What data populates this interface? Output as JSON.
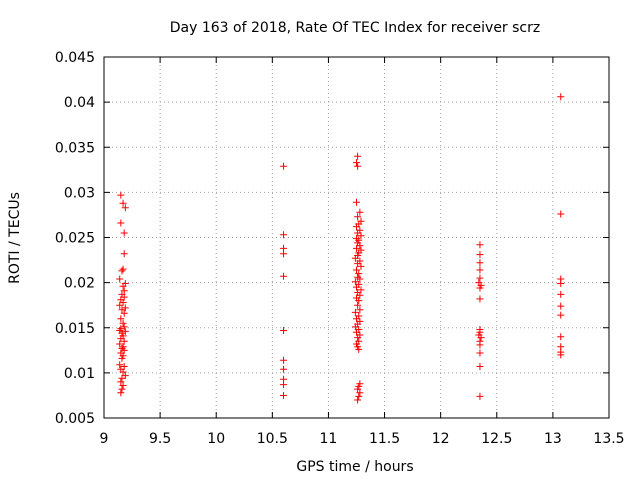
{
  "chart_data": {
    "type": "scatter",
    "title": "Day 163 of 2018, Rate Of TEC Index for receiver scrz",
    "xlabel": "GPS time / hours",
    "ylabel": "ROTI / TECUs",
    "xlim": [
      9,
      13.5
    ],
    "ylim": [
      0.005,
      0.045
    ],
    "grid": true,
    "marker": "+",
    "colors": {
      "points": "#ff0000",
      "grid": "#a0a0a0",
      "axes": "#000000"
    },
    "x_ticks": [
      "9",
      "9.5",
      "10",
      "10.5",
      "11",
      "11.5",
      "12",
      "12.5",
      "13",
      "13.5"
    ],
    "y_ticks": [
      "0.005",
      "0.01",
      "0.015",
      "0.02",
      "0.025",
      "0.03",
      "0.035",
      "0.04",
      "0.045"
    ],
    "series": [
      {
        "name": "ROTI",
        "points": [
          [
            9.15,
            0.0297
          ],
          [
            9.17,
            0.0288
          ],
          [
            9.19,
            0.0283
          ],
          [
            9.15,
            0.0266
          ],
          [
            9.18,
            0.0255
          ],
          [
            9.18,
            0.0232
          ],
          [
            9.17,
            0.0215
          ],
          [
            9.16,
            0.0213
          ],
          [
            9.14,
            0.0204
          ],
          [
            9.19,
            0.0199
          ],
          [
            9.17,
            0.0196
          ],
          [
            9.18,
            0.0191
          ],
          [
            9.16,
            0.0187
          ],
          [
            9.18,
            0.0184
          ],
          [
            9.15,
            0.0181
          ],
          [
            9.17,
            0.0178
          ],
          [
            9.14,
            0.0175
          ],
          [
            9.19,
            0.0172
          ],
          [
            9.16,
            0.017
          ],
          [
            9.18,
            0.0166
          ],
          [
            9.15,
            0.016
          ],
          [
            9.17,
            0.0155
          ],
          [
            9.18,
            0.0151
          ],
          [
            9.15,
            0.0149
          ],
          [
            9.14,
            0.0147
          ],
          [
            9.19,
            0.0146
          ],
          [
            9.16,
            0.0144
          ],
          [
            9.17,
            0.0141
          ],
          [
            9.15,
            0.0138
          ],
          [
            9.18,
            0.0135
          ],
          [
            9.14,
            0.0132
          ],
          [
            9.17,
            0.0129
          ],
          [
            9.16,
            0.0127
          ],
          [
            9.18,
            0.0125
          ],
          [
            9.15,
            0.0122
          ],
          [
            9.17,
            0.0119
          ],
          [
            9.16,
            0.0116
          ],
          [
            9.14,
            0.0109
          ],
          [
            9.18,
            0.0107
          ],
          [
            9.15,
            0.0104
          ],
          [
            9.17,
            0.0101
          ],
          [
            9.19,
            0.0097
          ],
          [
            9.16,
            0.0094
          ],
          [
            9.15,
            0.009
          ],
          [
            9.17,
            0.0086
          ],
          [
            9.16,
            0.0082
          ],
          [
            9.15,
            0.0078
          ],
          [
            10.6,
            0.0329
          ],
          [
            10.6,
            0.0253
          ],
          [
            10.6,
            0.0238
          ],
          [
            10.6,
            0.0232
          ],
          [
            10.6,
            0.0207
          ],
          [
            10.6,
            0.0147
          ],
          [
            10.6,
            0.0114
          ],
          [
            10.6,
            0.0104
          ],
          [
            10.6,
            0.0093
          ],
          [
            10.6,
            0.0087
          ],
          [
            10.6,
            0.0075
          ],
          [
            11.26,
            0.034
          ],
          [
            11.25,
            0.0333
          ],
          [
            11.26,
            0.0329
          ],
          [
            11.25,
            0.0289
          ],
          [
            11.28,
            0.0278
          ],
          [
            11.26,
            0.0273
          ],
          [
            11.29,
            0.0268
          ],
          [
            11.27,
            0.0265
          ],
          [
            11.25,
            0.0262
          ],
          [
            11.28,
            0.0258
          ],
          [
            11.26,
            0.0255
          ],
          [
            11.29,
            0.0252
          ],
          [
            11.25,
            0.0249
          ],
          [
            11.27,
            0.0247
          ],
          [
            11.26,
            0.0244
          ],
          [
            11.28,
            0.0241
          ],
          [
            11.25,
            0.0238
          ],
          [
            11.29,
            0.0236
          ],
          [
            11.27,
            0.0233
          ],
          [
            11.26,
            0.023
          ],
          [
            11.24,
            0.0227
          ],
          [
            11.28,
            0.0224
          ],
          [
            11.26,
            0.0221
          ],
          [
            11.29,
            0.0218
          ],
          [
            11.25,
            0.0214
          ],
          [
            11.27,
            0.021
          ],
          [
            11.26,
            0.0206
          ],
          [
            11.28,
            0.0204
          ],
          [
            11.24,
            0.0201
          ],
          [
            11.27,
            0.0198
          ],
          [
            11.25,
            0.0195
          ],
          [
            11.29,
            0.0192
          ],
          [
            11.26,
            0.0189
          ],
          [
            11.28,
            0.0186
          ],
          [
            11.25,
            0.0183
          ],
          [
            11.27,
            0.018
          ],
          [
            11.26,
            0.0175
          ],
          [
            11.28,
            0.017
          ],
          [
            11.24,
            0.0167
          ],
          [
            11.27,
            0.0163
          ],
          [
            11.25,
            0.016
          ],
          [
            11.28,
            0.0157
          ],
          [
            11.26,
            0.0154
          ],
          [
            11.24,
            0.0151
          ],
          [
            11.27,
            0.0148
          ],
          [
            11.25,
            0.0145
          ],
          [
            11.28,
            0.0142
          ],
          [
            11.26,
            0.0139
          ],
          [
            11.27,
            0.0135
          ],
          [
            11.25,
            0.0132
          ],
          [
            11.26,
            0.0129
          ],
          [
            11.27,
            0.0126
          ],
          [
            11.28,
            0.0088
          ],
          [
            11.27,
            0.0085
          ],
          [
            11.26,
            0.0082
          ],
          [
            11.28,
            0.0078
          ],
          [
            11.27,
            0.0074
          ],
          [
            11.26,
            0.007
          ],
          [
            12.35,
            0.0242
          ],
          [
            12.35,
            0.0231
          ],
          [
            12.35,
            0.0222
          ],
          [
            12.35,
            0.0214
          ],
          [
            12.35,
            0.0205
          ],
          [
            12.34,
            0.02
          ],
          [
            12.36,
            0.0197
          ],
          [
            12.35,
            0.0194
          ],
          [
            12.35,
            0.0182
          ],
          [
            12.35,
            0.0148
          ],
          [
            12.35,
            0.0145
          ],
          [
            12.34,
            0.0142
          ],
          [
            12.36,
            0.0139
          ],
          [
            12.35,
            0.0135
          ],
          [
            12.35,
            0.0131
          ],
          [
            12.35,
            0.0122
          ],
          [
            12.35,
            0.0107
          ],
          [
            12.35,
            0.0074
          ],
          [
            13.07,
            0.0406
          ],
          [
            13.07,
            0.0276
          ],
          [
            13.07,
            0.0204
          ],
          [
            13.07,
            0.0199
          ],
          [
            13.07,
            0.0187
          ],
          [
            13.07,
            0.0174
          ],
          [
            13.07,
            0.0164
          ],
          [
            13.07,
            0.014
          ],
          [
            13.07,
            0.0129
          ],
          [
            13.07,
            0.0123
          ],
          [
            13.07,
            0.012
          ]
        ]
      }
    ]
  }
}
